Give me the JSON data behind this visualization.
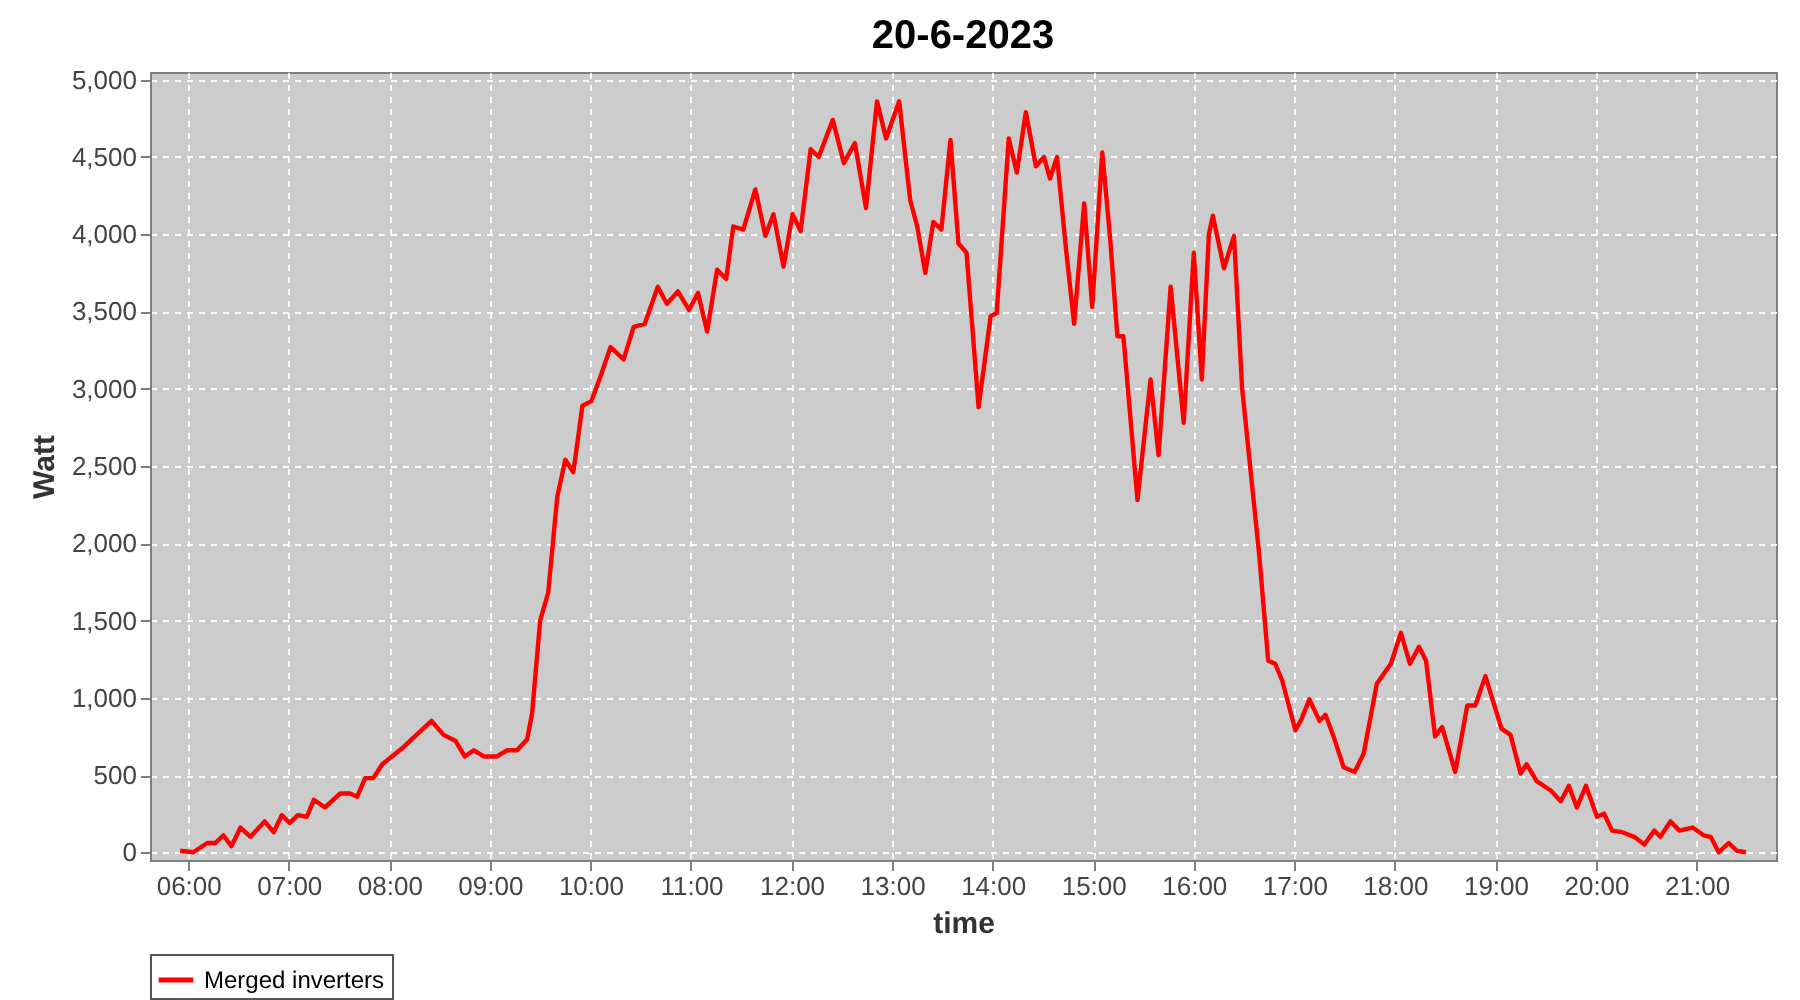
{
  "chart_data": {
    "type": "line",
    "title": "20-6-2023",
    "xlabel": "time",
    "ylabel": "Watt",
    "x": [
      5.92,
      6.05,
      6.19,
      6.27,
      6.35,
      6.43,
      6.52,
      6.62,
      6.76,
      6.85,
      6.93,
      7.01,
      7.09,
      7.18,
      7.25,
      7.36,
      7.51,
      7.61,
      7.68,
      7.76,
      7.84,
      7.93,
      8.14,
      8.27,
      8.42,
      8.54,
      8.66,
      8.75,
      8.84,
      8.94,
      9.07,
      9.17,
      9.27,
      9.37,
      9.42,
      9.5,
      9.58,
      9.67,
      9.75,
      9.83,
      9.92,
      10.01,
      10.1,
      10.2,
      10.33,
      10.43,
      10.54,
      10.67,
      10.76,
      10.87,
      10.98,
      11.07,
      11.16,
      11.26,
      11.35,
      11.42,
      11.52,
      11.64,
      11.74,
      11.82,
      11.92,
      12.01,
      12.09,
      12.19,
      12.27,
      12.41,
      12.52,
      12.63,
      12.74,
      12.85,
      12.94,
      13.07,
      13.18,
      13.25,
      13.33,
      13.41,
      13.49,
      13.58,
      13.66,
      13.74,
      13.86,
      13.98,
      14.04,
      14.16,
      14.24,
      14.33,
      14.43,
      14.51,
      14.57,
      14.64,
      14.73,
      14.81,
      14.91,
      14.99,
      15.09,
      15.17,
      15.24,
      15.3,
      15.44,
      15.57,
      15.65,
      15.77,
      15.9,
      16.0,
      16.08,
      16.15,
      16.19,
      16.3,
      16.4,
      16.48,
      16.56,
      16.65,
      16.74,
      16.81,
      16.88,
      17.01,
      17.07,
      17.15,
      17.25,
      17.31,
      17.39,
      17.49,
      17.6,
      17.69,
      17.82,
      17.96,
      18.06,
      18.15,
      18.24,
      18.31,
      18.4,
      18.47,
      18.6,
      18.72,
      18.8,
      18.9,
      19.06,
      19.15,
      19.25,
      19.31,
      19.41,
      19.55,
      19.65,
      19.73,
      19.81,
      19.9,
      20.01,
      20.08,
      20.16,
      20.26,
      20.38,
      20.48,
      20.58,
      20.64,
      20.74,
      20.83,
      20.96,
      21.07,
      21.14,
      21.22,
      21.32,
      21.4,
      21.49
    ],
    "series": [
      {
        "name": "Merged inverters",
        "color": "#ff0000",
        "values": [
          10,
          0,
          60,
          60,
          110,
          40,
          160,
          100,
          200,
          130,
          240,
          190,
          240,
          230,
          340,
          290,
          380,
          380,
          360,
          480,
          480,
          570,
          680,
          760,
          850,
          760,
          720,
          620,
          660,
          620,
          620,
          660,
          660,
          730,
          900,
          1500,
          1680,
          2300,
          2540,
          2460,
          2890,
          2920,
          3080,
          3270,
          3190,
          3400,
          3420,
          3660,
          3550,
          3630,
          3510,
          3620,
          3370,
          3770,
          3710,
          4050,
          4030,
          4290,
          3990,
          4130,
          3790,
          4130,
          4020,
          4550,
          4500,
          4740,
          4460,
          4590,
          4170,
          4860,
          4620,
          4860,
          4220,
          4050,
          3750,
          4080,
          4030,
          4610,
          3940,
          3880,
          2880,
          3470,
          3490,
          4620,
          4400,
          4790,
          4440,
          4500,
          4360,
          4500,
          3900,
          3420,
          4200,
          3530,
          4530,
          3960,
          3340,
          3340,
          2280,
          3060,
          2570,
          3660,
          2780,
          3880,
          3060,
          4000,
          4120,
          3780,
          3990,
          3010,
          2500,
          1930,
          1240,
          1220,
          1110,
          790,
          860,
          990,
          850,
          890,
          750,
          550,
          520,
          640,
          1090,
          1220,
          1420,
          1220,
          1330,
          1240,
          750,
          810,
          520,
          950,
          950,
          1140,
          800,
          760,
          510,
          570,
          460,
          400,
          330,
          430,
          290,
          430,
          230,
          250,
          140,
          130,
          100,
          50,
          140,
          100,
          200,
          140,
          160,
          110,
          100,
          0,
          60,
          10,
          0
        ]
      }
    ],
    "xlim": [
      5.62,
      21.79
    ],
    "ylim": [
      -50,
      5050
    ],
    "xticks": [
      {
        "value": 6,
        "label": "06:00"
      },
      {
        "value": 7,
        "label": "07:00"
      },
      {
        "value": 8,
        "label": "08:00"
      },
      {
        "value": 9,
        "label": "09:00"
      },
      {
        "value": 10,
        "label": "10:00"
      },
      {
        "value": 11,
        "label": "11:00"
      },
      {
        "value": 12,
        "label": "12:00"
      },
      {
        "value": 13,
        "label": "13:00"
      },
      {
        "value": 14,
        "label": "14:00"
      },
      {
        "value": 15,
        "label": "15:00"
      },
      {
        "value": 16,
        "label": "16:00"
      },
      {
        "value": 17,
        "label": "17:00"
      },
      {
        "value": 18,
        "label": "18:00"
      },
      {
        "value": 19,
        "label": "19:00"
      },
      {
        "value": 20,
        "label": "20:00"
      },
      {
        "value": 21,
        "label": "21:00"
      }
    ],
    "yticks": [
      0,
      500,
      {
        "value": 1000,
        "label": "1,000"
      },
      {
        "value": 1500,
        "label": "1,500"
      },
      {
        "value": 2000,
        "label": "2,000"
      },
      {
        "value": 2500,
        "label": "2,500"
      },
      {
        "value": 3000,
        "label": "3,000"
      },
      {
        "value": 3500,
        "label": "3,500"
      },
      {
        "value": 4000,
        "label": "4,000"
      },
      {
        "value": 4500,
        "label": "4,500"
      },
      {
        "value": 5000,
        "label": "5,000"
      }
    ],
    "grid": true,
    "legend": "bottom"
  }
}
